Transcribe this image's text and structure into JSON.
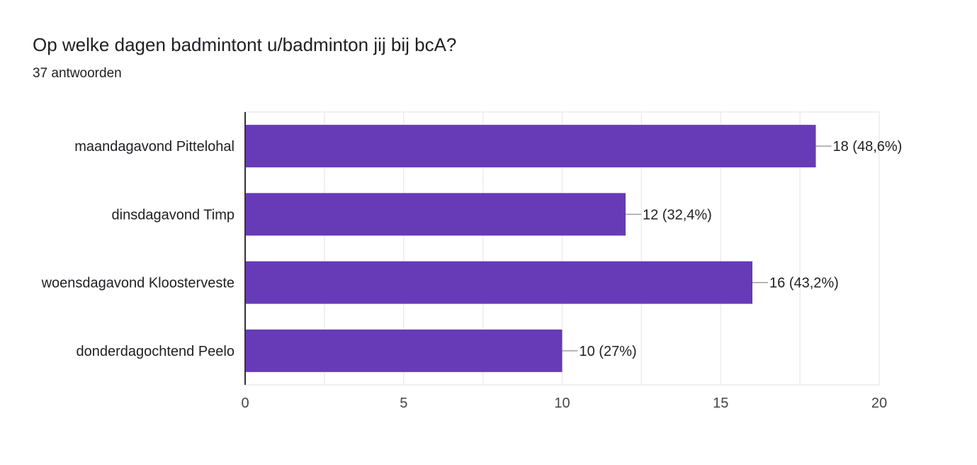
{
  "header": {
    "title": "Op welke dagen badmintont u/badminton jij bij bcA?",
    "subtitle": "37 antwoorden"
  },
  "chart_data": {
    "type": "bar",
    "orientation": "horizontal",
    "categories": [
      "maandagavond Pittelohal",
      "dinsdagavond Timp",
      "woensdagavond Kloosterveste",
      "donderdagochtend Peelo"
    ],
    "values": [
      18,
      12,
      16,
      10
    ],
    "data_labels": [
      "18 (48,6%)",
      "12 (32,4%)",
      "16 (43,2%)",
      "10 (27%)"
    ],
    "xlim": [
      0,
      20
    ],
    "xticks": [
      0,
      5,
      10,
      15,
      20
    ],
    "grid": true,
    "bar_color": "#673ab7"
  }
}
